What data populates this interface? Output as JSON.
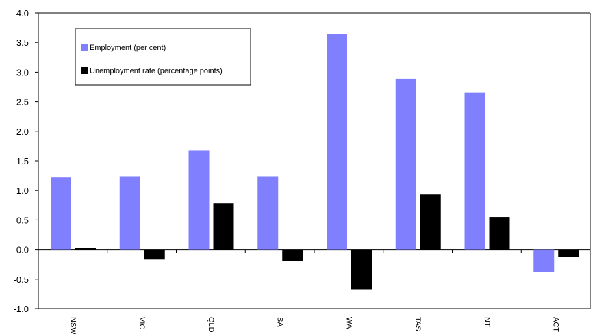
{
  "chart_data": {
    "type": "bar",
    "categories": [
      "NSW",
      "VIC",
      "QLD",
      "SA",
      "WA",
      "TAS",
      "NT",
      "ACT"
    ],
    "series": [
      {
        "name": "Employment (per cent)",
        "color": "#8080ff",
        "values": [
          1.22,
          1.24,
          1.68,
          1.24,
          3.65,
          2.89,
          2.65,
          -0.38
        ]
      },
      {
        "name": "Unemployment rate (percentage points)",
        "color": "#000000",
        "values": [
          0.02,
          -0.17,
          0.78,
          -0.2,
          -0.67,
          0.93,
          0.55,
          -0.13
        ]
      }
    ],
    "ylim": [
      -1.0,
      4.0
    ],
    "yticks": [
      "4.0",
      "3.5",
      "3.0",
      "2.5",
      "2.0",
      "1.5",
      "1.0",
      "0.5",
      "0.0",
      "-0.5",
      "-1.0"
    ],
    "ytick_values": [
      4.0,
      3.5,
      3.0,
      2.5,
      2.0,
      1.5,
      1.0,
      0.5,
      0.0,
      -0.5,
      -1.0
    ],
    "grid": false,
    "legend_position": "top-left"
  }
}
